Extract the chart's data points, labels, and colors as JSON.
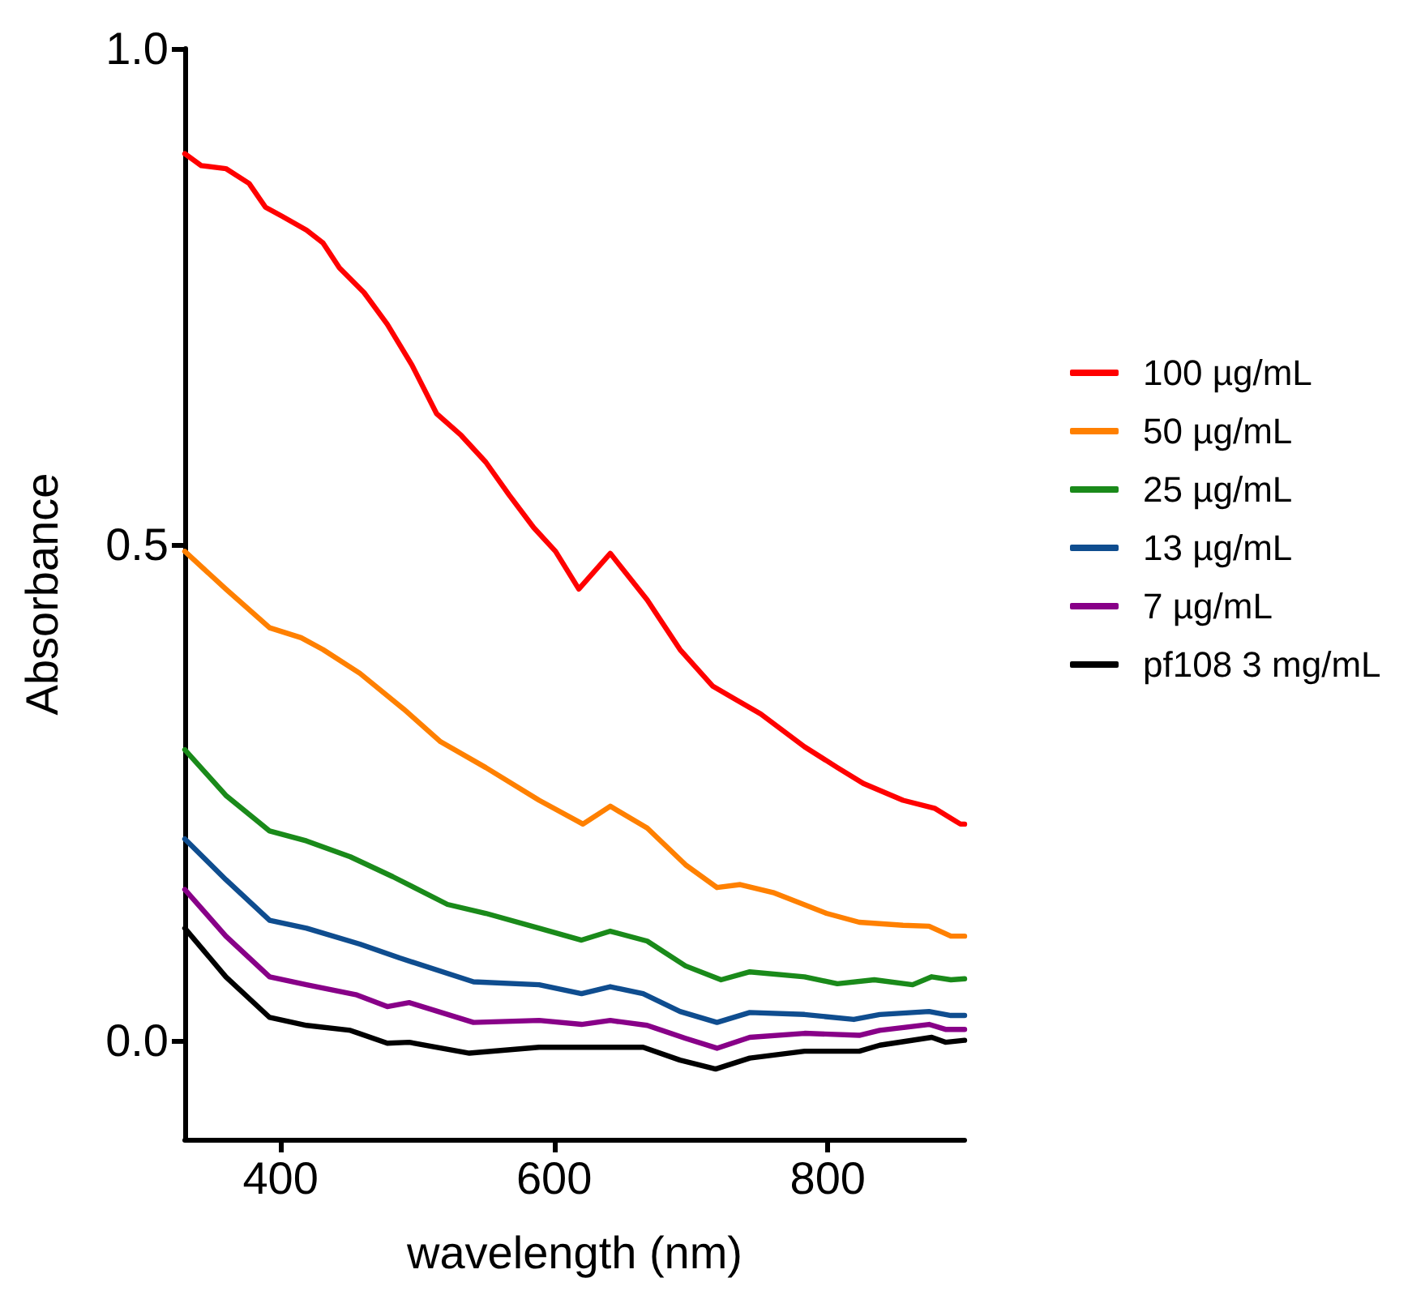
{
  "chart_data": {
    "type": "line",
    "xlabel": "wavelength (nm)",
    "ylabel": "Absorbance",
    "xlim": [
      330,
      900
    ],
    "xticks": [
      400,
      600,
      800
    ],
    "ylim": [
      -0.1,
      1.0
    ],
    "yticks": [
      {
        "value": 0,
        "label": "0.0"
      },
      {
        "value": 0.5,
        "label": "0.5"
      },
      {
        "value": 1.0,
        "label": "1.0"
      }
    ],
    "grid": false,
    "legend": "right",
    "marker": "none",
    "line_style": "solid",
    "series": [
      {
        "name": "100 µg/mL",
        "color": "#ff0000",
        "x": [
          330,
          342,
          360,
          377,
          389,
          401,
          419,
          431,
          443,
          461,
          478,
          496,
          514,
          532,
          550,
          567,
          585,
          601,
          618,
          641,
          668,
          692,
          716,
          731,
          751,
          783,
          807,
          826,
          855,
          878,
          897,
          900
        ],
        "values": [
          0.894,
          0.882,
          0.879,
          0.864,
          0.84,
          0.831,
          0.817,
          0.804,
          0.779,
          0.754,
          0.722,
          0.681,
          0.632,
          0.61,
          0.583,
          0.55,
          0.517,
          0.493,
          0.455,
          0.491,
          0.444,
          0.394,
          0.357,
          0.345,
          0.329,
          0.296,
          0.275,
          0.259,
          0.242,
          0.234,
          0.218,
          0.218
        ]
      },
      {
        "name": "50 µg/mL",
        "color": "#ff8000",
        "x": [
          330,
          360,
          392,
          415,
          431,
          458,
          490,
          517,
          550,
          589,
          621,
          641,
          668,
          696,
          719,
          736,
          760,
          799,
          823,
          855,
          874,
          890,
          900
        ],
        "values": [
          0.493,
          0.455,
          0.416,
          0.406,
          0.394,
          0.37,
          0.334,
          0.301,
          0.275,
          0.242,
          0.218,
          0.236,
          0.214,
          0.177,
          0.154,
          0.157,
          0.149,
          0.128,
          0.119,
          0.116,
          0.115,
          0.105,
          0.105
        ]
      },
      {
        "name": "25 µg/mL",
        "color": "#1a8a1a",
        "x": [
          330,
          360,
          392,
          419,
          451,
          482,
          522,
          550,
          589,
          620,
          641,
          668,
          696,
          722,
          743,
          783,
          807,
          834,
          862,
          876,
          890,
          900
        ],
        "values": [
          0.293,
          0.247,
          0.211,
          0.201,
          0.185,
          0.165,
          0.137,
          0.128,
          0.113,
          0.101,
          0.11,
          0.1,
          0.075,
          0.061,
          0.069,
          0.064,
          0.057,
          0.061,
          0.056,
          0.064,
          0.061,
          0.062
        ]
      },
      {
        "name": "13 µg/mL",
        "color": "#0f4d8f",
        "x": [
          330,
          360,
          392,
          419,
          458,
          487,
          541,
          589,
          620,
          641,
          665,
          692,
          719,
          743,
          783,
          819,
          838,
          874,
          890,
          900
        ],
        "values": [
          0.203,
          0.162,
          0.121,
          0.113,
          0.097,
          0.083,
          0.059,
          0.056,
          0.047,
          0.054,
          0.047,
          0.029,
          0.018,
          0.028,
          0.026,
          0.021,
          0.026,
          0.029,
          0.025,
          0.025
        ]
      },
      {
        "name": "7 µg/mL",
        "color": "#880088",
        "x": [
          330,
          360,
          392,
          419,
          455,
          478,
          494,
          541,
          589,
          620,
          641,
          668,
          696,
          719,
          743,
          783,
          823,
          838,
          874,
          886,
          900
        ],
        "values": [
          0.152,
          0.105,
          0.064,
          0.056,
          0.046,
          0.034,
          0.038,
          0.018,
          0.02,
          0.016,
          0.02,
          0.015,
          0.002,
          -0.008,
          0.003,
          0.007,
          0.005,
          0.01,
          0.016,
          0.011,
          0.011
        ]
      },
      {
        "name": "pf108 3 mg/mL",
        "color": "#000000",
        "x": [
          330,
          360,
          392,
          419,
          451,
          478,
          494,
          538,
          589,
          618,
          665,
          692,
          718,
          743,
          783,
          823,
          838,
          876,
          886,
          900
        ],
        "values": [
          0.113,
          0.064,
          0.023,
          0.015,
          0.01,
          -0.003,
          -0.002,
          -0.013,
          -0.007,
          -0.007,
          -0.007,
          -0.02,
          -0.029,
          -0.018,
          -0.011,
          -0.011,
          -0.005,
          0.003,
          -0.002,
          0.0
        ]
      }
    ]
  }
}
